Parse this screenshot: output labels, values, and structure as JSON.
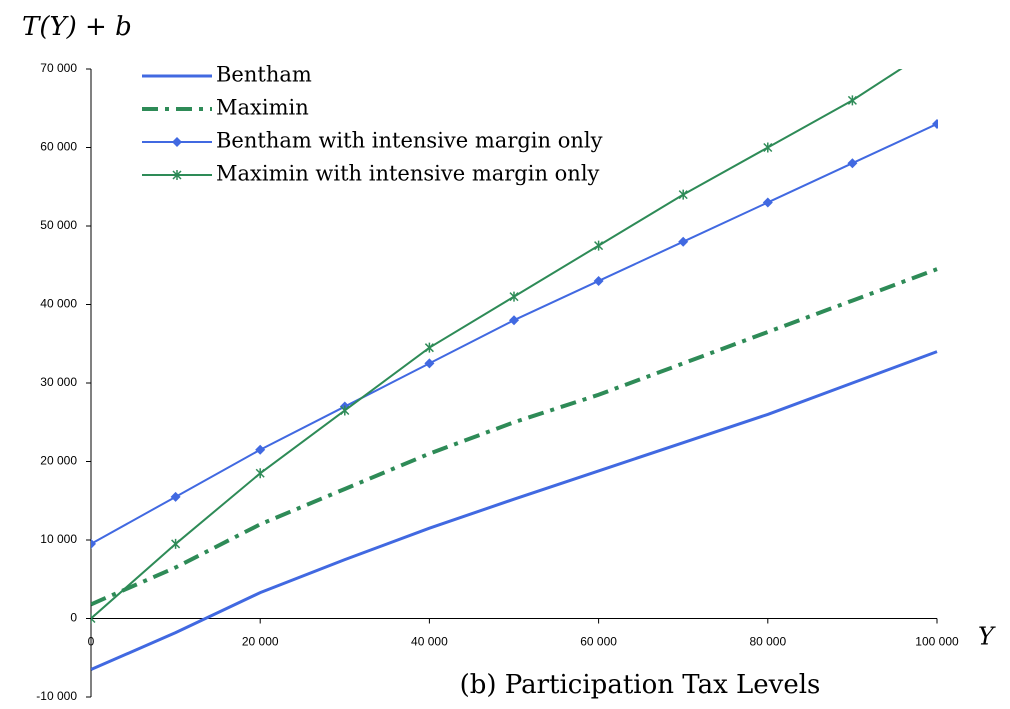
{
  "chart_data": {
    "type": "line",
    "title": "T(Y) + b",
    "xlabel": "Y",
    "subtitle": "(b) Participation Tax Levels",
    "x": [
      0,
      10000,
      20000,
      30000,
      40000,
      50000,
      60000,
      70000,
      80000,
      90000,
      100000
    ],
    "series": [
      {
        "name": "Bentham",
        "color": "#4169e1",
        "style": "solid",
        "values": [
          -6500,
          -1800,
          3300,
          7500,
          11500,
          15200,
          18800,
          22400,
          26000,
          30000,
          34000
        ]
      },
      {
        "name": "Maximin",
        "color": "#2e8b57",
        "style": "dashdot",
        "values": [
          1800,
          6500,
          12000,
          16500,
          21000,
          25000,
          28500,
          32500,
          36500,
          40500,
          44500
        ]
      },
      {
        "name": "Bentham with intensive margin only",
        "color": "#4169e1",
        "style": "diamond",
        "values": [
          9500,
          15500,
          21500,
          27000,
          32500,
          38000,
          43000,
          48000,
          53000,
          58000,
          63000
        ]
      },
      {
        "name": "Maximin with intensive margin only",
        "color": "#2e8b57",
        "style": "cross",
        "values": [
          0,
          9500,
          18500,
          26500,
          34500,
          41000,
          47500,
          54000,
          60000,
          66000,
          73000
        ]
      }
    ],
    "xlim": [
      0,
      100000
    ],
    "ylim": [
      -10000,
      70000
    ],
    "xticks": [
      0,
      {
        "value": 20000,
        "label": "20 000"
      },
      {
        "value": 40000,
        "label": "40 000"
      },
      {
        "value": 60000,
        "label": "60 000"
      },
      {
        "value": 80000,
        "label": "80 000"
      },
      {
        "value": 100000,
        "label": "100 000"
      }
    ],
    "yticks": [
      {
        "value": -10000,
        "label": "-10 000"
      },
      0,
      {
        "value": 10000,
        "label": "10 000"
      },
      {
        "value": 20000,
        "label": "20 000"
      },
      {
        "value": 30000,
        "label": "30 000"
      },
      {
        "value": 40000,
        "label": "40 000"
      },
      {
        "value": 50000,
        "label": "50 000"
      },
      {
        "value": 60000,
        "label": "60 000"
      },
      {
        "value": 70000,
        "label": "70 000"
      }
    ]
  }
}
